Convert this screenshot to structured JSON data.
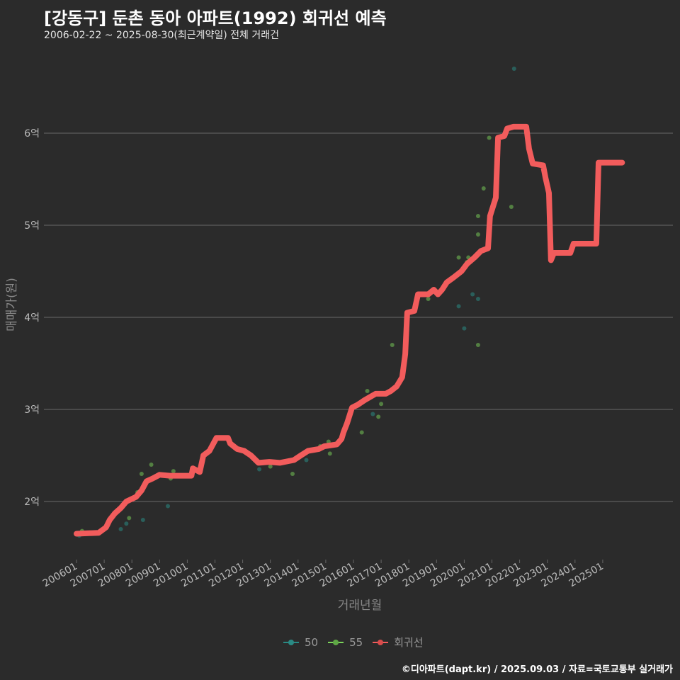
{
  "title": "[강동구] 둔촌 동아 아파트(1992) 회귀선 예측",
  "subtitle": "2006-02-22 ~ 2025-08-30(최근계약일) 전체 거래건",
  "caption": "©디아파트(dapt.kr) / 2025.09.03 / 자료=국토교통부 실거래가",
  "colors": {
    "s50": "#2a8a84",
    "s55": "#7bd45a",
    "reg": "#f25c5c",
    "grid": "#6a6a6a"
  },
  "chart_data": {
    "type": "scatter",
    "title": "[강동구] 둔촌 동아 아파트(1992) 회귀선 예측",
    "xlabel": "거래년월",
    "ylabel": "매매가(원)",
    "xlim": [
      2005.9,
      2026.0
    ],
    "ylim": [
      1.4,
      6.95
    ],
    "x_ticks": [
      {
        "v": 2006,
        "label": "200601"
      },
      {
        "v": 2007,
        "label": "200701"
      },
      {
        "v": 2008,
        "label": "200801"
      },
      {
        "v": 2009,
        "label": "200901"
      },
      {
        "v": 2010,
        "label": "201001"
      },
      {
        "v": 2011,
        "label": "201101"
      },
      {
        "v": 2012,
        "label": "201201"
      },
      {
        "v": 2013,
        "label": "201301"
      },
      {
        "v": 2014,
        "label": "201401"
      },
      {
        "v": 2015,
        "label": "201501"
      },
      {
        "v": 2016,
        "label": "201601"
      },
      {
        "v": 2017,
        "label": "201701"
      },
      {
        "v": 2018,
        "label": "201801"
      },
      {
        "v": 2019,
        "label": "201901"
      },
      {
        "v": 2020,
        "label": "202001"
      },
      {
        "v": 2021,
        "label": "202101"
      },
      {
        "v": 2022,
        "label": "202201"
      },
      {
        "v": 2023,
        "label": "202301"
      },
      {
        "v": 2024,
        "label": "202401"
      },
      {
        "v": 2025,
        "label": "202501"
      }
    ],
    "y_ticks": [
      {
        "v": 2,
        "label": "2억"
      },
      {
        "v": 3,
        "label": "3억"
      },
      {
        "v": 4,
        "label": "4억"
      },
      {
        "v": 5,
        "label": "5억"
      },
      {
        "v": 6,
        "label": "6억"
      }
    ],
    "legend": {
      "position": "bottom",
      "items": [
        "50",
        "55",
        "회귀선"
      ]
    },
    "series": [
      {
        "name": "50",
        "points": [
          [
            2006.1,
            1.63
          ],
          [
            2007.6,
            1.7
          ],
          [
            2007.8,
            1.76
          ],
          [
            2008.4,
            1.8
          ],
          [
            2009.3,
            1.95
          ],
          [
            2012.6,
            2.35
          ],
          [
            2014.3,
            2.45
          ],
          [
            2016.7,
            2.95
          ],
          [
            2019.8,
            4.12
          ],
          [
            2020.0,
            3.88
          ],
          [
            2020.3,
            4.25
          ],
          [
            2020.5,
            4.2
          ],
          [
            2021.8,
            6.7
          ]
        ]
      },
      {
        "name": "55",
        "points": [
          [
            2006.2,
            1.68
          ],
          [
            2007.9,
            1.82
          ],
          [
            2008.2,
            2.1
          ],
          [
            2008.35,
            2.3
          ],
          [
            2008.7,
            2.4
          ],
          [
            2009.4,
            2.25
          ],
          [
            2009.5,
            2.33
          ],
          [
            2013.0,
            2.38
          ],
          [
            2013.8,
            2.3
          ],
          [
            2014.8,
            2.6
          ],
          [
            2015.1,
            2.65
          ],
          [
            2015.15,
            2.52
          ],
          [
            2016.3,
            2.75
          ],
          [
            2016.5,
            3.2
          ],
          [
            2016.9,
            2.92
          ],
          [
            2017.0,
            3.06
          ],
          [
            2017.4,
            3.7
          ],
          [
            2018.7,
            4.2
          ],
          [
            2019.8,
            4.65
          ],
          [
            2020.1,
            4.6
          ],
          [
            2020.15,
            4.65
          ],
          [
            2020.5,
            3.7
          ],
          [
            2020.5,
            4.9
          ],
          [
            2020.5,
            5.1
          ],
          [
            2020.7,
            5.4
          ],
          [
            2020.9,
            5.95
          ],
          [
            2021.7,
            5.2
          ]
        ]
      },
      {
        "name": "회귀선",
        "line": [
          [
            2006.0,
            1.65
          ],
          [
            2006.8,
            1.66
          ],
          [
            2007.07,
            1.72
          ],
          [
            2007.2,
            1.8
          ],
          [
            2007.38,
            1.87
          ],
          [
            2007.6,
            1.93
          ],
          [
            2007.8,
            2.0
          ],
          [
            2008.15,
            2.05
          ],
          [
            2008.35,
            2.12
          ],
          [
            2008.53,
            2.22
          ],
          [
            2008.75,
            2.25
          ],
          [
            2009.0,
            2.29
          ],
          [
            2009.37,
            2.28
          ],
          [
            2010.15,
            2.28
          ],
          [
            2010.2,
            2.36
          ],
          [
            2010.45,
            2.32
          ],
          [
            2010.58,
            2.5
          ],
          [
            2010.8,
            2.55
          ],
          [
            2011.05,
            2.69
          ],
          [
            2011.47,
            2.69
          ],
          [
            2011.55,
            2.63
          ],
          [
            2011.8,
            2.57
          ],
          [
            2012.05,
            2.55
          ],
          [
            2012.3,
            2.5
          ],
          [
            2012.57,
            2.42
          ],
          [
            2012.96,
            2.43
          ],
          [
            2013.34,
            2.42
          ],
          [
            2013.85,
            2.45
          ],
          [
            2014.1,
            2.5
          ],
          [
            2014.36,
            2.55
          ],
          [
            2014.75,
            2.57
          ],
          [
            2014.95,
            2.6
          ],
          [
            2015.4,
            2.62
          ],
          [
            2015.57,
            2.68
          ],
          [
            2015.64,
            2.75
          ],
          [
            2015.77,
            2.85
          ],
          [
            2015.95,
            3.02
          ],
          [
            2016.15,
            3.05
          ],
          [
            2016.4,
            3.1
          ],
          [
            2016.8,
            3.17
          ],
          [
            2017.17,
            3.17
          ],
          [
            2017.35,
            3.2
          ],
          [
            2017.56,
            3.25
          ],
          [
            2017.76,
            3.35
          ],
          [
            2017.87,
            3.6
          ],
          [
            2017.94,
            4.05
          ],
          [
            2018.2,
            4.07
          ],
          [
            2018.33,
            4.25
          ],
          [
            2018.7,
            4.25
          ],
          [
            2018.9,
            4.3
          ],
          [
            2019.05,
            4.25
          ],
          [
            2019.2,
            4.3
          ],
          [
            2019.37,
            4.38
          ],
          [
            2019.6,
            4.43
          ],
          [
            2019.9,
            4.5
          ],
          [
            2020.1,
            4.58
          ],
          [
            2020.37,
            4.65
          ],
          [
            2020.6,
            4.72
          ],
          [
            2020.86,
            4.75
          ],
          [
            2020.93,
            5.1
          ],
          [
            2021.14,
            5.3
          ],
          [
            2021.22,
            5.95
          ],
          [
            2021.45,
            5.97
          ],
          [
            2021.55,
            6.05
          ],
          [
            2021.78,
            6.07
          ],
          [
            2022.24,
            6.07
          ],
          [
            2022.34,
            5.83
          ],
          [
            2022.47,
            5.67
          ],
          [
            2022.85,
            5.65
          ],
          [
            2022.93,
            5.52
          ],
          [
            2023.06,
            5.35
          ],
          [
            2023.13,
            4.62
          ],
          [
            2023.24,
            4.7
          ],
          [
            2023.83,
            4.7
          ],
          [
            2023.95,
            4.8
          ],
          [
            2024.77,
            4.8
          ],
          [
            2024.85,
            5.68
          ],
          [
            2025.7,
            5.68
          ]
        ]
      }
    ]
  }
}
